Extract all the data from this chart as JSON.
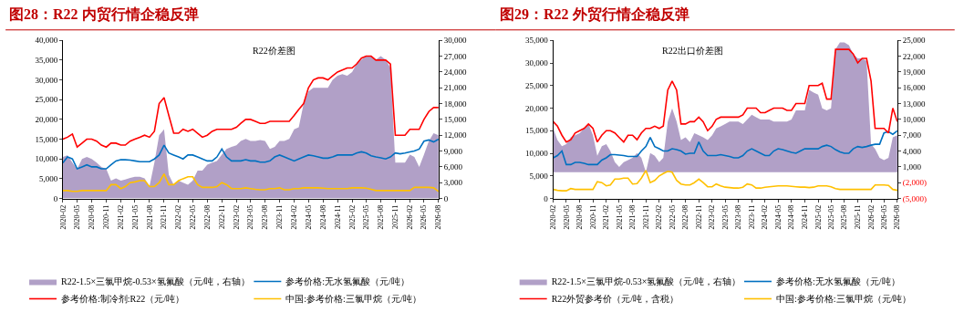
{
  "chart_data": [
    {
      "type": "line",
      "title": "图28：R22 内贸行情企稳反弹",
      "subtitle": "R22价差图",
      "legend": "bottom",
      "x": [
        "2020-02",
        "2020-03",
        "2020-04",
        "2020-05",
        "2020-06",
        "2020-07",
        "2020-08",
        "2020-09",
        "2020-10",
        "2020-11",
        "2020-12",
        "2021-01",
        "2021-02",
        "2021-03",
        "2021-04",
        "2021-05",
        "2021-06",
        "2021-07",
        "2021-08",
        "2021-09",
        "2021-10",
        "2021-11",
        "2021-12",
        "2022-01",
        "2022-02",
        "2022-03",
        "2022-04",
        "2022-05",
        "2022-06",
        "2022-07",
        "2022-08",
        "2022-09",
        "2022-10",
        "2022-11",
        "2022-12",
        "2023-01",
        "2023-02",
        "2023-03",
        "2023-04",
        "2023-05",
        "2023-06",
        "2023-07",
        "2023-08",
        "2023-09",
        "2023-10",
        "2023-11",
        "2023-12",
        "2024-01",
        "2024-02",
        "2024-03",
        "2024-04",
        "2024-05",
        "2024-06",
        "2024-07",
        "2024-08",
        "2024-09",
        "2024-10",
        "2024-11",
        "2024-12",
        "2025-01",
        "2025-02",
        "2025-03",
        "2025-04",
        "2025-05",
        "2025-06",
        "2025-07",
        "2025-08",
        "2025-09",
        "2025-10",
        "2025-11",
        "2025-12",
        "2026-01",
        "2026-02",
        "2026-03",
        "2026-04",
        "2026-05",
        "2026-06",
        "2026-07",
        "2026-08"
      ],
      "xlim": [
        "2020-02",
        "2026-08"
      ],
      "xticks": [
        "2020-02",
        "2020-05",
        "2020-08",
        "2020-11",
        "2021-02",
        "2021-05",
        "2021-08",
        "2021-11",
        "2022-02",
        "2022-05",
        "2022-08",
        "2022-11",
        "2023-02",
        "2023-05",
        "2023-08",
        "2023-11",
        "2024-02",
        "2024-05",
        "2024-08",
        "2024-11",
        "2025-02",
        "2025-05",
        "2025-08",
        "2025-11",
        "2026-02",
        "2026-05",
        "2026-08"
      ],
      "ylim": [
        0,
        40000
      ],
      "yticks": [
        0,
        {
          "value": 5000,
          "label": "5,000"
        },
        {
          "value": 10000,
          "label": "10,000"
        },
        {
          "value": 15000,
          "label": "15,000"
        },
        {
          "value": 20000,
          "label": "20,000"
        },
        {
          "value": 25000,
          "label": "25,000"
        },
        {
          "value": 30000,
          "label": "30,000"
        },
        {
          "value": 35000,
          "label": "35,000"
        },
        {
          "value": 40000,
          "label": "40,000"
        }
      ],
      "y2lim": [
        0,
        30000
      ],
      "y2ticks": [
        0,
        {
          "value": 3000,
          "label": "3,000"
        },
        {
          "value": 6000,
          "label": "6,000"
        },
        {
          "value": 9000,
          "label": "9,000"
        },
        {
          "value": 12000,
          "label": "12,000"
        },
        {
          "value": 15000,
          "label": "15,000"
        },
        {
          "value": 18000,
          "label": "18,000"
        },
        {
          "value": 21000,
          "label": "21,000"
        },
        {
          "value": 24000,
          "label": "24,000"
        },
        {
          "value": 27000,
          "label": "27,000"
        },
        {
          "value": 30000,
          "label": "30,000"
        }
      ],
      "series": [
        {
          "name": "R22-1.5×三氯甲烷-0.53×氢氟酸（元/吨，右轴）",
          "type": "area",
          "axis": "y2",
          "color": "#b1a0c7",
          "values": [
            7900,
            8200,
            6800,
            5600,
            7500,
            7900,
            7500,
            6800,
            6000,
            5600,
            3400,
            3800,
            3400,
            3600,
            3900,
            4100,
            4100,
            3800,
            2300,
            6800,
            12000,
            13100,
            4500,
            2600,
            3400,
            3000,
            2600,
            3400,
            5300,
            5300,
            6400,
            6800,
            7100,
            8300,
            9400,
            9800,
            10100,
            10900,
            11300,
            10900,
            10900,
            11100,
            10900,
            9400,
            9800,
            10900,
            10900,
            11300,
            13100,
            13500,
            18000,
            20300,
            21000,
            21000,
            21000,
            21000,
            22500,
            23300,
            23600,
            23300,
            24000,
            25500,
            26300,
            27000,
            27000,
            26300,
            27000,
            26300,
            24800,
            6800,
            6800,
            6800,
            8300,
            7900,
            6000,
            8300,
            10900,
            12400,
            12000
          ]
        },
        {
          "name": "参考价格:无水氢氟酸（元/吨）",
          "color": "#0070c0",
          "values": [
            9000,
            10500,
            10000,
            7500,
            8000,
            8500,
            8000,
            8000,
            7500,
            7500,
            8500,
            9500,
            9800,
            9800,
            9700,
            9500,
            9300,
            9300,
            9300,
            10000,
            11000,
            13500,
            11500,
            11000,
            10500,
            10000,
            11000,
            11000,
            10500,
            10000,
            9500,
            9500,
            10500,
            12500,
            10500,
            9500,
            9500,
            9500,
            9800,
            9500,
            9500,
            9200,
            9200,
            9500,
            10500,
            11000,
            10500,
            10000,
            9500,
            10000,
            10500,
            11000,
            10800,
            10500,
            10200,
            10200,
            10500,
            11000,
            11000,
            11000,
            11000,
            11500,
            11800,
            11500,
            10800,
            10500,
            10300,
            10000,
            10500,
            11500,
            11300,
            11500,
            11800,
            12000,
            12500,
            14500,
            14800,
            14300,
            15000
          ]
        },
        {
          "name": "参考价格:制冷剂:R22（元/吨）",
          "color": "#ff0000",
          "values": [
            15000,
            15500,
            16300,
            13000,
            14000,
            15000,
            15000,
            14500,
            13500,
            13000,
            14000,
            14000,
            13500,
            13500,
            14500,
            15000,
            15500,
            16000,
            15500,
            17000,
            24000,
            25500,
            21000,
            16500,
            16500,
            17500,
            17000,
            17500,
            16500,
            15500,
            16000,
            17000,
            17500,
            17500,
            17500,
            17500,
            18000,
            19000,
            20000,
            20000,
            19500,
            19000,
            19000,
            19500,
            19500,
            19500,
            19500,
            19500,
            21000,
            22500,
            24000,
            28000,
            30000,
            30500,
            30500,
            30000,
            31000,
            32000,
            32500,
            33000,
            33000,
            34000,
            35500,
            36000,
            36000,
            35000,
            35000,
            35000,
            34000,
            16000,
            16000,
            16000,
            17500,
            17500,
            17500,
            20000,
            22000,
            23000,
            23000
          ]
        },
        {
          "name": "中国:参考价格:三氯甲烷（元/吨）",
          "color": "#ffc000",
          "values": [
            2000,
            2000,
            1800,
            1800,
            2000,
            2000,
            2000,
            2000,
            2000,
            2000,
            3500,
            3500,
            2500,
            3000,
            4000,
            4200,
            4500,
            4500,
            3000,
            3000,
            4000,
            6200,
            3500,
            3500,
            4500,
            5000,
            5500,
            5500,
            3500,
            2800,
            2800,
            2800,
            3000,
            4000,
            3500,
            2500,
            2500,
            2500,
            2700,
            2500,
            2300,
            2200,
            2200,
            2500,
            2500,
            2700,
            2200,
            2200,
            2500,
            2500,
            2700,
            2700,
            2700,
            2700,
            2600,
            2500,
            2500,
            2500,
            2500,
            2500,
            2700,
            2700,
            2700,
            2600,
            2300,
            2000,
            2000,
            2000,
            2000,
            2000,
            2000,
            2000,
            2000,
            2800,
            2800,
            2800,
            2800,
            2700,
            1800
          ]
        }
      ]
    },
    {
      "type": "line",
      "title": "图29：R22 外贸行情企稳反弹",
      "subtitle": "R22出口价差图",
      "legend": "bottom",
      "x": [
        "2020-02",
        "2020-03",
        "2020-04",
        "2020-05",
        "2020-06",
        "2020-07",
        "2020-08",
        "2020-09",
        "2020-10",
        "2020-11",
        "2020-12",
        "2021-01",
        "2021-02",
        "2021-03",
        "2021-04",
        "2021-05",
        "2021-06",
        "2021-07",
        "2021-08",
        "2021-09",
        "2021-10",
        "2021-11",
        "2021-12",
        "2022-01",
        "2022-02",
        "2022-03",
        "2022-04",
        "2022-05",
        "2022-06",
        "2022-07",
        "2022-08",
        "2022-09",
        "2022-10",
        "2022-11",
        "2022-12",
        "2023-01",
        "2023-02",
        "2023-03",
        "2023-04",
        "2023-05",
        "2023-06",
        "2023-07",
        "2023-08",
        "2023-09",
        "2023-10",
        "2023-11",
        "2023-12",
        "2024-01",
        "2024-02",
        "2024-03",
        "2024-04",
        "2024-05",
        "2024-06",
        "2024-07",
        "2024-08",
        "2024-09",
        "2024-10",
        "2024-11",
        "2024-12",
        "2025-01",
        "2025-02",
        "2025-03",
        "2025-04",
        "2025-05",
        "2025-06",
        "2025-07",
        "2025-08",
        "2025-09",
        "2025-10",
        "2025-11",
        "2025-12",
        "2026-01",
        "2026-02",
        "2026-03",
        "2026-04",
        "2026-05",
        "2026-06",
        "2026-07",
        "2026-08"
      ],
      "xlim": [
        "2020-02",
        "2026-08"
      ],
      "xticks": [
        "2020-02",
        "2020-05",
        "2020-08",
        "2020-11",
        "2021-02",
        "2021-05",
        "2021-08",
        "2021-11",
        "2022-02",
        "2022-05",
        "2022-08",
        "2022-11",
        "2023-02",
        "2023-05",
        "2023-08",
        "2023-11",
        "2024-02",
        "2024-05",
        "2024-08",
        "2024-11",
        "2025-02",
        "2025-05",
        "2025-08",
        "2025-11",
        "2026-02",
        "2026-05",
        "2026-08"
      ],
      "ylim": [
        0,
        35000
      ],
      "yticks": [
        0,
        {
          "value": 5000,
          "label": "5,000"
        },
        {
          "value": 10000,
          "label": "10,000"
        },
        {
          "value": 15000,
          "label": "15,000"
        },
        {
          "value": 20000,
          "label": "20,000"
        },
        {
          "value": 25000,
          "label": "25,000"
        },
        {
          "value": 30000,
          "label": "30,000"
        },
        {
          "value": 35000,
          "label": "35,000"
        }
      ],
      "y2lim": [
        -5000,
        25000
      ],
      "y2ticks": [
        {
          "value": -5000,
          "label": "(5,000)"
        },
        {
          "value": -2000,
          "label": "(2,000)"
        },
        {
          "value": 1000,
          "label": "1,000"
        },
        {
          "value": 4000,
          "label": "4,000"
        },
        {
          "value": 7000,
          "label": "7,000"
        },
        {
          "value": 10000,
          "label": "10,000"
        },
        {
          "value": 13000,
          "label": "13,000"
        },
        {
          "value": 16000,
          "label": "16,000"
        },
        {
          "value": 19000,
          "label": "19,000"
        },
        {
          "value": 22000,
          "label": "22,000"
        },
        {
          "value": 25000,
          "label": "25,000"
        }
      ],
      "series": [
        {
          "name": "R22-1.5×三氯甲烷-0.53×氢氟酸（元/吨，右轴）",
          "type": "area",
          "axis": "y2",
          "color": "#b1a0c7",
          "values": [
            8300,
            6100,
            4900,
            5300,
            6600,
            7000,
            7400,
            8300,
            9100,
            7000,
            3100,
            4900,
            5300,
            4000,
            1900,
            1000,
            1900,
            2300,
            2700,
            3600,
            2700,
            0,
            3600,
            3100,
            1900,
            2700,
            9600,
            12100,
            9600,
            6100,
            6600,
            5700,
            7400,
            7000,
            6600,
            6100,
            7000,
            8300,
            8700,
            9100,
            9600,
            9600,
            9600,
            9100,
            10000,
            10900,
            10400,
            10000,
            10000,
            10000,
            9600,
            9600,
            9600,
            9600,
            10000,
            11700,
            11700,
            11700,
            15600,
            15100,
            14700,
            12100,
            11700,
            12100,
            23300,
            24600,
            24600,
            24100,
            22400,
            21600,
            21600,
            21100,
            5300,
            4400,
            2700,
            2300,
            2700,
            6600,
            7000
          ]
        },
        {
          "name": "参考价格:无水氢氟酸（元/吨）",
          "color": "#0070c0",
          "values": [
            9000,
            9500,
            10500,
            7500,
            7500,
            8000,
            8000,
            7800,
            7500,
            7500,
            7500,
            8500,
            9000,
            9700,
            9700,
            9600,
            9500,
            9300,
            9300,
            9300,
            10500,
            11500,
            13500,
            11500,
            11000,
            10500,
            10500,
            11000,
            10800,
            10500,
            9800,
            10000,
            10000,
            12500,
            10500,
            9500,
            9500,
            9500,
            9700,
            9500,
            9300,
            9000,
            9000,
            9500,
            10500,
            11000,
            10500,
            10000,
            9500,
            9500,
            10500,
            11000,
            10800,
            10500,
            10200,
            10000,
            10500,
            11000,
            11000,
            11000,
            11000,
            11500,
            11800,
            11500,
            10800,
            10300,
            10000,
            10000,
            11000,
            11500,
            11300,
            11500,
            11800,
            12000,
            12000,
            14500,
            14800,
            14200,
            15000
          ]
        },
        {
          "name": "R22外贸参考价（元/吨，含税）",
          "color": "#ff0000",
          "values": [
            17000,
            16000,
            14000,
            12500,
            13000,
            14500,
            15000,
            15500,
            16500,
            15500,
            12500,
            14000,
            15000,
            15000,
            14500,
            13500,
            12500,
            14000,
            14000,
            13000,
            14500,
            15500,
            15500,
            16000,
            15500,
            16000,
            24000,
            26000,
            24000,
            16500,
            16500,
            17000,
            17000,
            18000,
            17000,
            15000,
            16000,
            17500,
            18000,
            18000,
            18000,
            18000,
            18000,
            18500,
            20000,
            20000,
            20000,
            19000,
            19000,
            19500,
            20000,
            20000,
            20000,
            19500,
            19500,
            21000,
            21000,
            21000,
            25000,
            25000,
            25000,
            25500,
            22000,
            22000,
            33000,
            33000,
            33000,
            33000,
            32000,
            30000,
            31000,
            31000,
            26000,
            15500,
            15500,
            15500,
            14500,
            20000,
            17000
          ]
        },
        {
          "name": "中国:参考价格:三氯甲烷（元/吨）",
          "color": "#ffc000",
          "values": [
            2000,
            1800,
            1700,
            1700,
            2200,
            2000,
            2000,
            2000,
            2000,
            2000,
            3700,
            3500,
            2800,
            3000,
            4300,
            4300,
            4500,
            4500,
            3200,
            3300,
            4500,
            6200,
            3500,
            4000,
            5000,
            5500,
            6000,
            5800,
            4000,
            3200,
            3000,
            3000,
            3500,
            4300,
            3500,
            2600,
            2600,
            3200,
            2800,
            2500,
            2400,
            2300,
            2300,
            2500,
            3200,
            3000,
            2300,
            2300,
            2500,
            2600,
            2700,
            2800,
            2800,
            2800,
            2700,
            2600,
            2500,
            2500,
            2400,
            2500,
            2800,
            2800,
            2800,
            2600,
            2200,
            2000,
            2000,
            2000,
            2000,
            2000,
            2000,
            2000,
            2000,
            3000,
            3000,
            3000,
            2900,
            2000,
            1800
          ]
        }
      ]
    }
  ]
}
